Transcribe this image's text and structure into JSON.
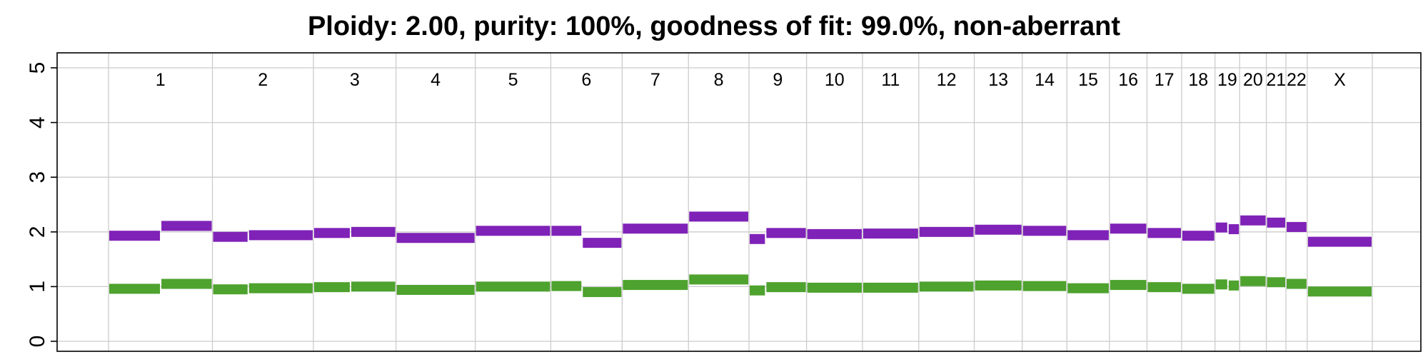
{
  "title": "Ploidy: 2.00, purity: 100%, goodness of fit: 99.0%, non-aberrant",
  "chart_data": {
    "type": "line",
    "ylim": [
      0,
      5
    ],
    "y_ticks": [
      "0",
      "1",
      "2",
      "3",
      "4",
      "5"
    ],
    "grid": true,
    "chromosomes": [
      "1",
      "2",
      "3",
      "4",
      "5",
      "6",
      "7",
      "8",
      "9",
      "10",
      "11",
      "12",
      "13",
      "14",
      "15",
      "16",
      "17",
      "18",
      "19",
      "20",
      "21",
      "22",
      "X"
    ],
    "chromosome_boundaries_mb": [
      0,
      249,
      491,
      689,
      879,
      1060,
      1231,
      1390,
      1535,
      1673,
      1807,
      1942,
      2075,
      2190,
      2297,
      2399,
      2489,
      2572,
      2652,
      2711,
      2775,
      2822,
      2873,
      3029
    ],
    "colors": {
      "total": "#7F22B7",
      "minor": "#4EA22E",
      "grid": "#CCCCCC"
    },
    "series": [
      {
        "key": "total",
        "color": "#7F22B7",
        "segments": [
          {
            "start": 0,
            "end": 125,
            "value": 1.93
          },
          {
            "start": 125,
            "end": 249,
            "value": 2.11
          },
          {
            "start": 249,
            "end": 335,
            "value": 1.91
          },
          {
            "start": 335,
            "end": 491,
            "value": 1.94
          },
          {
            "start": 491,
            "end": 580,
            "value": 1.98
          },
          {
            "start": 580,
            "end": 689,
            "value": 2.0
          },
          {
            "start": 689,
            "end": 879,
            "value": 1.89
          },
          {
            "start": 879,
            "end": 1060,
            "value": 2.02
          },
          {
            "start": 1060,
            "end": 1135,
            "value": 2.02
          },
          {
            "start": 1135,
            "end": 1231,
            "value": 1.8
          },
          {
            "start": 1231,
            "end": 1390,
            "value": 2.06
          },
          {
            "start": 1390,
            "end": 1535,
            "value": 2.28
          },
          {
            "start": 1535,
            "end": 1575,
            "value": 1.87
          },
          {
            "start": 1575,
            "end": 1673,
            "value": 1.98
          },
          {
            "start": 1673,
            "end": 1807,
            "value": 1.96
          },
          {
            "start": 1807,
            "end": 1942,
            "value": 1.97
          },
          {
            "start": 1942,
            "end": 2075,
            "value": 2.0
          },
          {
            "start": 2075,
            "end": 2190,
            "value": 2.04
          },
          {
            "start": 2190,
            "end": 2297,
            "value": 2.02
          },
          {
            "start": 2297,
            "end": 2399,
            "value": 1.94
          },
          {
            "start": 2399,
            "end": 2489,
            "value": 2.06
          },
          {
            "start": 2489,
            "end": 2572,
            "value": 1.98
          },
          {
            "start": 2572,
            "end": 2652,
            "value": 1.93
          },
          {
            "start": 2652,
            "end": 2683,
            "value": 2.08
          },
          {
            "start": 2683,
            "end": 2711,
            "value": 2.05
          },
          {
            "start": 2711,
            "end": 2775,
            "value": 2.21
          },
          {
            "start": 2775,
            "end": 2822,
            "value": 2.17
          },
          {
            "start": 2822,
            "end": 2873,
            "value": 2.09
          },
          {
            "start": 2873,
            "end": 3029,
            "value": 1.82
          }
        ]
      },
      {
        "key": "minor",
        "color": "#4EA22E",
        "segments": [
          {
            "start": 0,
            "end": 125,
            "value": 0.96
          },
          {
            "start": 125,
            "end": 249,
            "value": 1.05
          },
          {
            "start": 249,
            "end": 335,
            "value": 0.95
          },
          {
            "start": 335,
            "end": 491,
            "value": 0.97
          },
          {
            "start": 491,
            "end": 580,
            "value": 0.99
          },
          {
            "start": 580,
            "end": 689,
            "value": 1.0
          },
          {
            "start": 689,
            "end": 879,
            "value": 0.94
          },
          {
            "start": 879,
            "end": 1060,
            "value": 1.0
          },
          {
            "start": 1060,
            "end": 1135,
            "value": 1.01
          },
          {
            "start": 1135,
            "end": 1231,
            "value": 0.9
          },
          {
            "start": 1231,
            "end": 1390,
            "value": 1.03
          },
          {
            "start": 1390,
            "end": 1535,
            "value": 1.13
          },
          {
            "start": 1535,
            "end": 1575,
            "value": 0.93
          },
          {
            "start": 1575,
            "end": 1673,
            "value": 0.99
          },
          {
            "start": 1673,
            "end": 1807,
            "value": 0.98
          },
          {
            "start": 1807,
            "end": 1942,
            "value": 0.98
          },
          {
            "start": 1942,
            "end": 2075,
            "value": 1.0
          },
          {
            "start": 2075,
            "end": 2190,
            "value": 1.02
          },
          {
            "start": 2190,
            "end": 2297,
            "value": 1.01
          },
          {
            "start": 2297,
            "end": 2399,
            "value": 0.97
          },
          {
            "start": 2399,
            "end": 2489,
            "value": 1.03
          },
          {
            "start": 2489,
            "end": 2572,
            "value": 0.99
          },
          {
            "start": 2572,
            "end": 2652,
            "value": 0.96
          },
          {
            "start": 2652,
            "end": 2683,
            "value": 1.04
          },
          {
            "start": 2683,
            "end": 2711,
            "value": 1.02
          },
          {
            "start": 2711,
            "end": 2775,
            "value": 1.1
          },
          {
            "start": 2775,
            "end": 2822,
            "value": 1.08
          },
          {
            "start": 2822,
            "end": 2873,
            "value": 1.05
          },
          {
            "start": 2873,
            "end": 3029,
            "value": 0.91
          }
        ]
      }
    ]
  }
}
